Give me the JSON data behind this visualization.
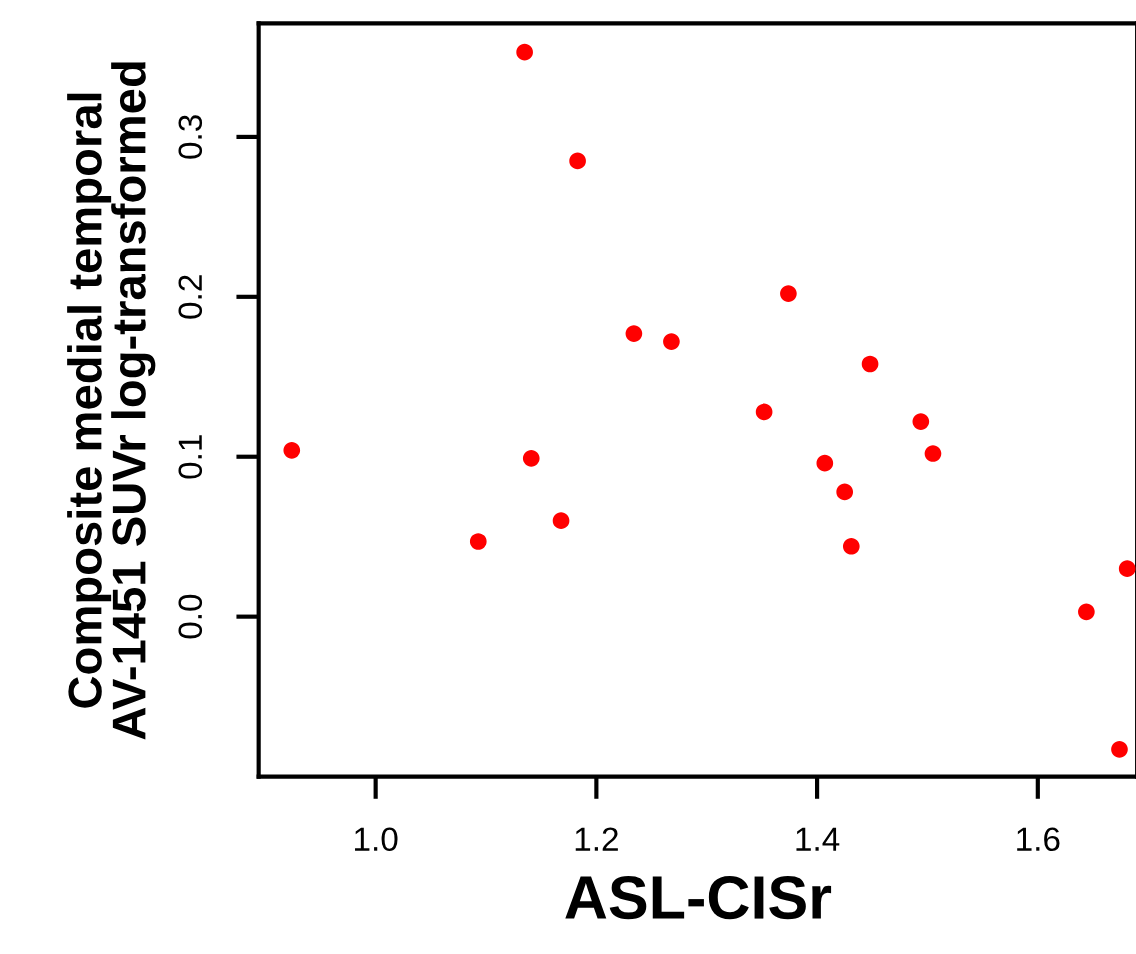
{
  "chart_data": {
    "type": "scatter",
    "xlabel": "ASL-CISr",
    "ylabel": "Composite medial temporal\nAV-1451 SUVr log-transformed",
    "x": [
      1.135,
      1.183,
      1.234,
      1.268,
      1.374,
      1.448,
      0.924,
      1.093,
      1.141,
      1.168,
      1.352,
      1.407,
      1.425,
      1.431,
      1.494,
      1.505,
      1.644,
      1.681,
      1.674
    ],
    "series": [
      {
        "color": "#ff0000",
        "values": [
          0.353,
          0.285,
          0.177,
          0.172,
          0.202,
          0.158,
          0.104,
          0.047,
          0.099,
          0.06,
          0.128,
          0.096,
          0.078,
          0.044,
          0.122,
          0.102,
          0.003,
          0.03,
          -0.083
        ]
      }
    ],
    "xlim": [
      0.894,
      1.69
    ],
    "ylim": [
      -0.1,
      0.371
    ],
    "xticks": [
      {
        "value": 1,
        "label": "1.0"
      },
      1.2,
      1.4,
      1.6
    ],
    "yticks": [
      {
        "value": 0,
        "label": "0.0"
      },
      0.1,
      0.2,
      0.3
    ],
    "marker": "circle",
    "grid": false,
    "legend": false
  }
}
